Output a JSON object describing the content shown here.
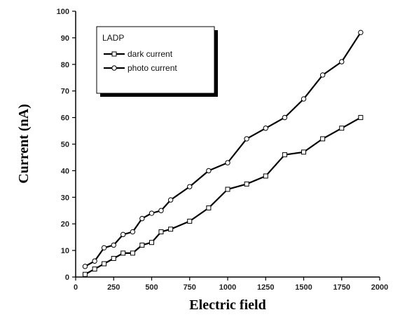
{
  "chart_data": {
    "type": "line",
    "title": "",
    "xlabel": "Electric field",
    "ylabel": "Current (nA)",
    "xlim": [
      0,
      2000
    ],
    "ylim": [
      0,
      100
    ],
    "xticks": [
      0,
      250,
      500,
      750,
      1000,
      1250,
      1500,
      1750,
      2000
    ],
    "yticks": [
      0,
      10,
      20,
      30,
      40,
      50,
      60,
      70,
      80,
      90,
      100
    ],
    "grid": false,
    "legend": {
      "title": "LADP",
      "placement": "top-left"
    },
    "series": [
      {
        "name": "dark current",
        "marker": "square",
        "color": "#000000",
        "points": [
          [
            62,
            1
          ],
          [
            125,
            3
          ],
          [
            187,
            5
          ],
          [
            250,
            7
          ],
          [
            312,
            9
          ],
          [
            375,
            9
          ],
          [
            437,
            12
          ],
          [
            500,
            13
          ],
          [
            562,
            17
          ],
          [
            625,
            18
          ],
          [
            750,
            21
          ],
          [
            875,
            26
          ],
          [
            1000,
            33
          ],
          [
            1125,
            35
          ],
          [
            1250,
            38
          ],
          [
            1375,
            46
          ],
          [
            1500,
            47
          ],
          [
            1625,
            52
          ],
          [
            1750,
            56
          ],
          [
            1875,
            60
          ]
        ]
      },
      {
        "name": "photo current",
        "marker": "circle",
        "color": "#000000",
        "points": [
          [
            62,
            4
          ],
          [
            125,
            6
          ],
          [
            187,
            11
          ],
          [
            250,
            12
          ],
          [
            312,
            16
          ],
          [
            375,
            17
          ],
          [
            437,
            22
          ],
          [
            500,
            24
          ],
          [
            562,
            25
          ],
          [
            625,
            29
          ],
          [
            750,
            34
          ],
          [
            875,
            40
          ],
          [
            1000,
            43
          ],
          [
            1125,
            52
          ],
          [
            1250,
            56
          ],
          [
            1375,
            60
          ],
          [
            1500,
            67
          ],
          [
            1625,
            76
          ],
          [
            1750,
            81
          ],
          [
            1875,
            92
          ]
        ]
      }
    ]
  }
}
